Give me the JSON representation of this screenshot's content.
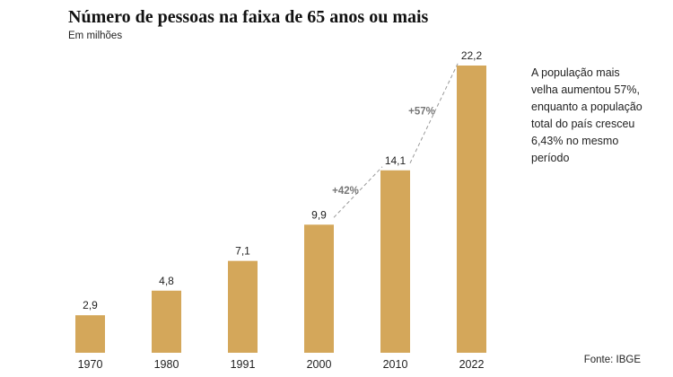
{
  "header": {
    "title": "Número de pessoas na faixa de 65 anos ou mais",
    "subtitle": "Em milhões"
  },
  "annotation": "A população mais velha aumentou 57%, enquanto a população total do país cresceu 6,43% no mesmo período",
  "source": "Fonte: IBGE",
  "colors": {
    "bar": "#d4a75a",
    "trend": "#9a9a9a",
    "text": "#222222"
  },
  "chart_data": {
    "type": "bar",
    "title": "Número de pessoas na faixa de 65 anos ou mais",
    "subtitle": "Em milhões",
    "categories": [
      "1970",
      "1980",
      "1991",
      "2000",
      "2010",
      "2022"
    ],
    "values": [
      2.9,
      4.8,
      7.1,
      9.9,
      14.1,
      22.2
    ],
    "value_labels": [
      "2,9",
      "4,8",
      "7,1",
      "9,9",
      "14,1",
      "22,2"
    ],
    "ylim": [
      0,
      22.2
    ],
    "grid": false,
    "legend": "none",
    "trend_annotations": [
      {
        "from": "2000",
        "to": "2010",
        "label": "+42%"
      },
      {
        "from": "2010",
        "to": "2022",
        "label": "+57%"
      }
    ]
  }
}
